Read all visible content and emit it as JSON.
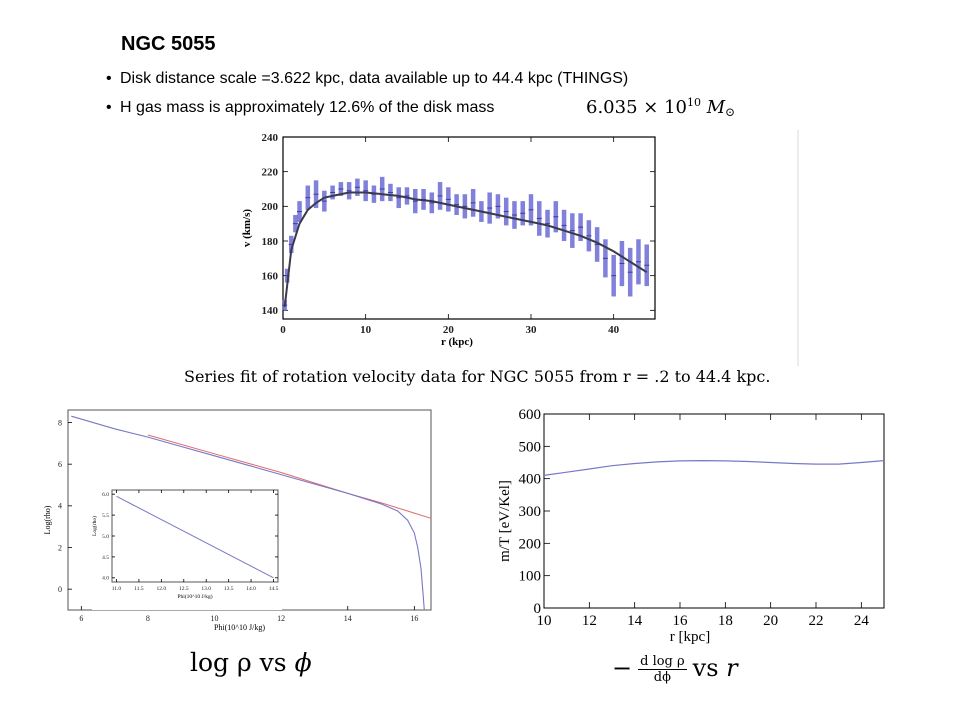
{
  "slide": {
    "title": "NGC 5055",
    "bullets": [
      "Disk distance scale =3.622 kpc, data available up to 44.4 kpc (THINGS)",
      "H gas mass is approximately 12.6% of the disk mass"
    ],
    "mass_formula": {
      "mantissa": "6.035",
      "times": "×",
      "base": "10",
      "exponent": "10",
      "unit": "M",
      "unit_sub": "⊙"
    }
  },
  "captions": {
    "plot1": "Series fit of rotation velocity data for NGC 5055 from r = .2 to 44.4 kpc.",
    "plot2": {
      "lhs": "log ρ",
      "vs": "vs",
      "rhs": "ϕ"
    },
    "plot3": {
      "minus": "−",
      "num": "d log ρ",
      "den": "dϕ",
      "vs": "vs",
      "rhs": "r"
    }
  },
  "colors": {
    "data_bars": "#6b6bd6",
    "fit_curve": "#3a3a4a",
    "series_blue": "#7878c8",
    "series_red": "#e06a6a"
  },
  "chart_data": [
    {
      "type": "line",
      "title": "",
      "xlabel": "r  (kpc)",
      "ylabel": "v  (km/s)",
      "xlim": [
        0,
        45
      ],
      "ylim": [
        135,
        240
      ],
      "xticks": [
        0,
        10,
        20,
        30,
        40
      ],
      "yticks": [
        140,
        160,
        180,
        200,
        220,
        240
      ],
      "series": [
        {
          "role": "data",
          "style": "error-bars",
          "x": [
            0.2,
            0.5,
            1,
            1.5,
            2,
            3,
            4,
            5,
            6,
            7,
            8,
            9,
            10,
            11,
            12,
            13,
            14,
            15,
            16,
            17,
            18,
            19,
            20,
            21,
            22,
            23,
            24,
            25,
            26,
            27,
            28,
            29,
            30,
            31,
            32,
            33,
            34,
            35,
            36,
            37,
            38,
            39,
            40,
            41,
            42,
            43,
            44
          ],
          "y": [
            143,
            160,
            178,
            190,
            197,
            205,
            207,
            203,
            208,
            210,
            209,
            211,
            209,
            207,
            210,
            208,
            205,
            206,
            203,
            204,
            202,
            206,
            204,
            201,
            200,
            202,
            197,
            199,
            200,
            197,
            195,
            196,
            198,
            193,
            190,
            194,
            189,
            186,
            188,
            183,
            178,
            170,
            160,
            167,
            162,
            168,
            166
          ],
          "err": [
            3,
            4,
            5,
            5,
            6,
            7,
            8,
            6,
            4,
            4,
            5,
            5,
            6,
            5,
            7,
            5,
            6,
            5,
            7,
            6,
            6,
            8,
            7,
            6,
            7,
            8,
            6,
            9,
            7,
            8,
            8,
            7,
            9,
            10,
            8,
            9,
            9,
            10,
            8,
            9,
            10,
            11,
            12,
            13,
            14,
            13,
            12
          ]
        },
        {
          "role": "fit",
          "style": "curve",
          "x": [
            0.2,
            1,
            2,
            3,
            4,
            5,
            6,
            8,
            10,
            12,
            14,
            16,
            18,
            20,
            22,
            24,
            26,
            28,
            30,
            32,
            34,
            36,
            38,
            40,
            42,
            44
          ],
          "y": [
            142,
            175,
            190,
            198,
            202,
            205,
            206,
            208,
            208,
            207,
            206,
            204,
            203,
            201,
            199,
            197,
            195,
            193,
            191,
            189,
            186,
            183,
            179,
            174,
            168,
            162
          ]
        }
      ]
    },
    {
      "type": "line",
      "title": "",
      "xlabel": "Phi(10^10 J/kg)",
      "ylabel": "Log(rho)",
      "xlim": [
        5.6,
        16.5
      ],
      "ylim": [
        -1.0,
        8.6
      ],
      "xticks": [
        6,
        8,
        10,
        12,
        14,
        16
      ],
      "yticks": [
        0,
        2,
        4,
        6,
        8
      ],
      "series": [
        {
          "color_key": "series_red",
          "x": [
            8.0,
            10.0,
            12.0,
            14.0,
            15.0,
            16.0,
            16.5
          ],
          "y": [
            7.4,
            6.5,
            5.6,
            4.6,
            4.15,
            3.65,
            3.4
          ]
        },
        {
          "color_key": "series_blue",
          "x": [
            5.7,
            7.0,
            8.0,
            9.0,
            10.0,
            11.0,
            12.0,
            13.0,
            14.0,
            15.0,
            15.5,
            15.8,
            16.0,
            16.1,
            16.2,
            16.25,
            16.3
          ],
          "y": [
            8.3,
            7.7,
            7.3,
            6.85,
            6.4,
            5.95,
            5.5,
            5.05,
            4.6,
            4.1,
            3.75,
            3.3,
            2.7,
            2.0,
            1.0,
            0.0,
            -1.0
          ]
        }
      ],
      "inset": {
        "xlabel": "Phi(10^10 J/kg)",
        "ylabel": "Log(rho)",
        "xlim": [
          10.9,
          14.6
        ],
        "ylim": [
          3.9,
          6.1
        ],
        "xticks": [
          11.0,
          11.5,
          12.0,
          12.5,
          13.0,
          13.5,
          14.0,
          14.5
        ],
        "xtick_labels": [
          "11.0",
          "11.5",
          "12.0",
          "12.5",
          "13.0",
          "13.5",
          "14.0",
          "14.5"
        ],
        "yticks": [
          4.0,
          4.5,
          5.0,
          5.5,
          6.0
        ],
        "ytick_labels": [
          "4.0",
          "4.5",
          "5.0",
          "5.5",
          "6.0"
        ],
        "series": [
          {
            "color_key": "series_blue",
            "x": [
              11.0,
              14.5
            ],
            "y": [
              5.95,
              4.0
            ]
          }
        ]
      }
    },
    {
      "type": "line",
      "title": "",
      "xlabel": "r [kpc]",
      "ylabel": "m/T [eV/Kel]",
      "xlim": [
        10,
        25
      ],
      "ylim": [
        0,
        600
      ],
      "xticks": [
        10,
        12,
        14,
        16,
        18,
        20,
        22,
        24
      ],
      "yticks": [
        0,
        100,
        200,
        300,
        400,
        500,
        600
      ],
      "series": [
        {
          "color_key": "series_blue",
          "x": [
            10,
            11,
            12,
            13,
            14,
            15,
            16,
            17,
            18,
            19,
            20,
            21,
            22,
            23,
            24,
            25
          ],
          "y": [
            410,
            420,
            430,
            440,
            447,
            452,
            455,
            456,
            455,
            453,
            450,
            447,
            445,
            445,
            450,
            456
          ]
        }
      ]
    }
  ]
}
